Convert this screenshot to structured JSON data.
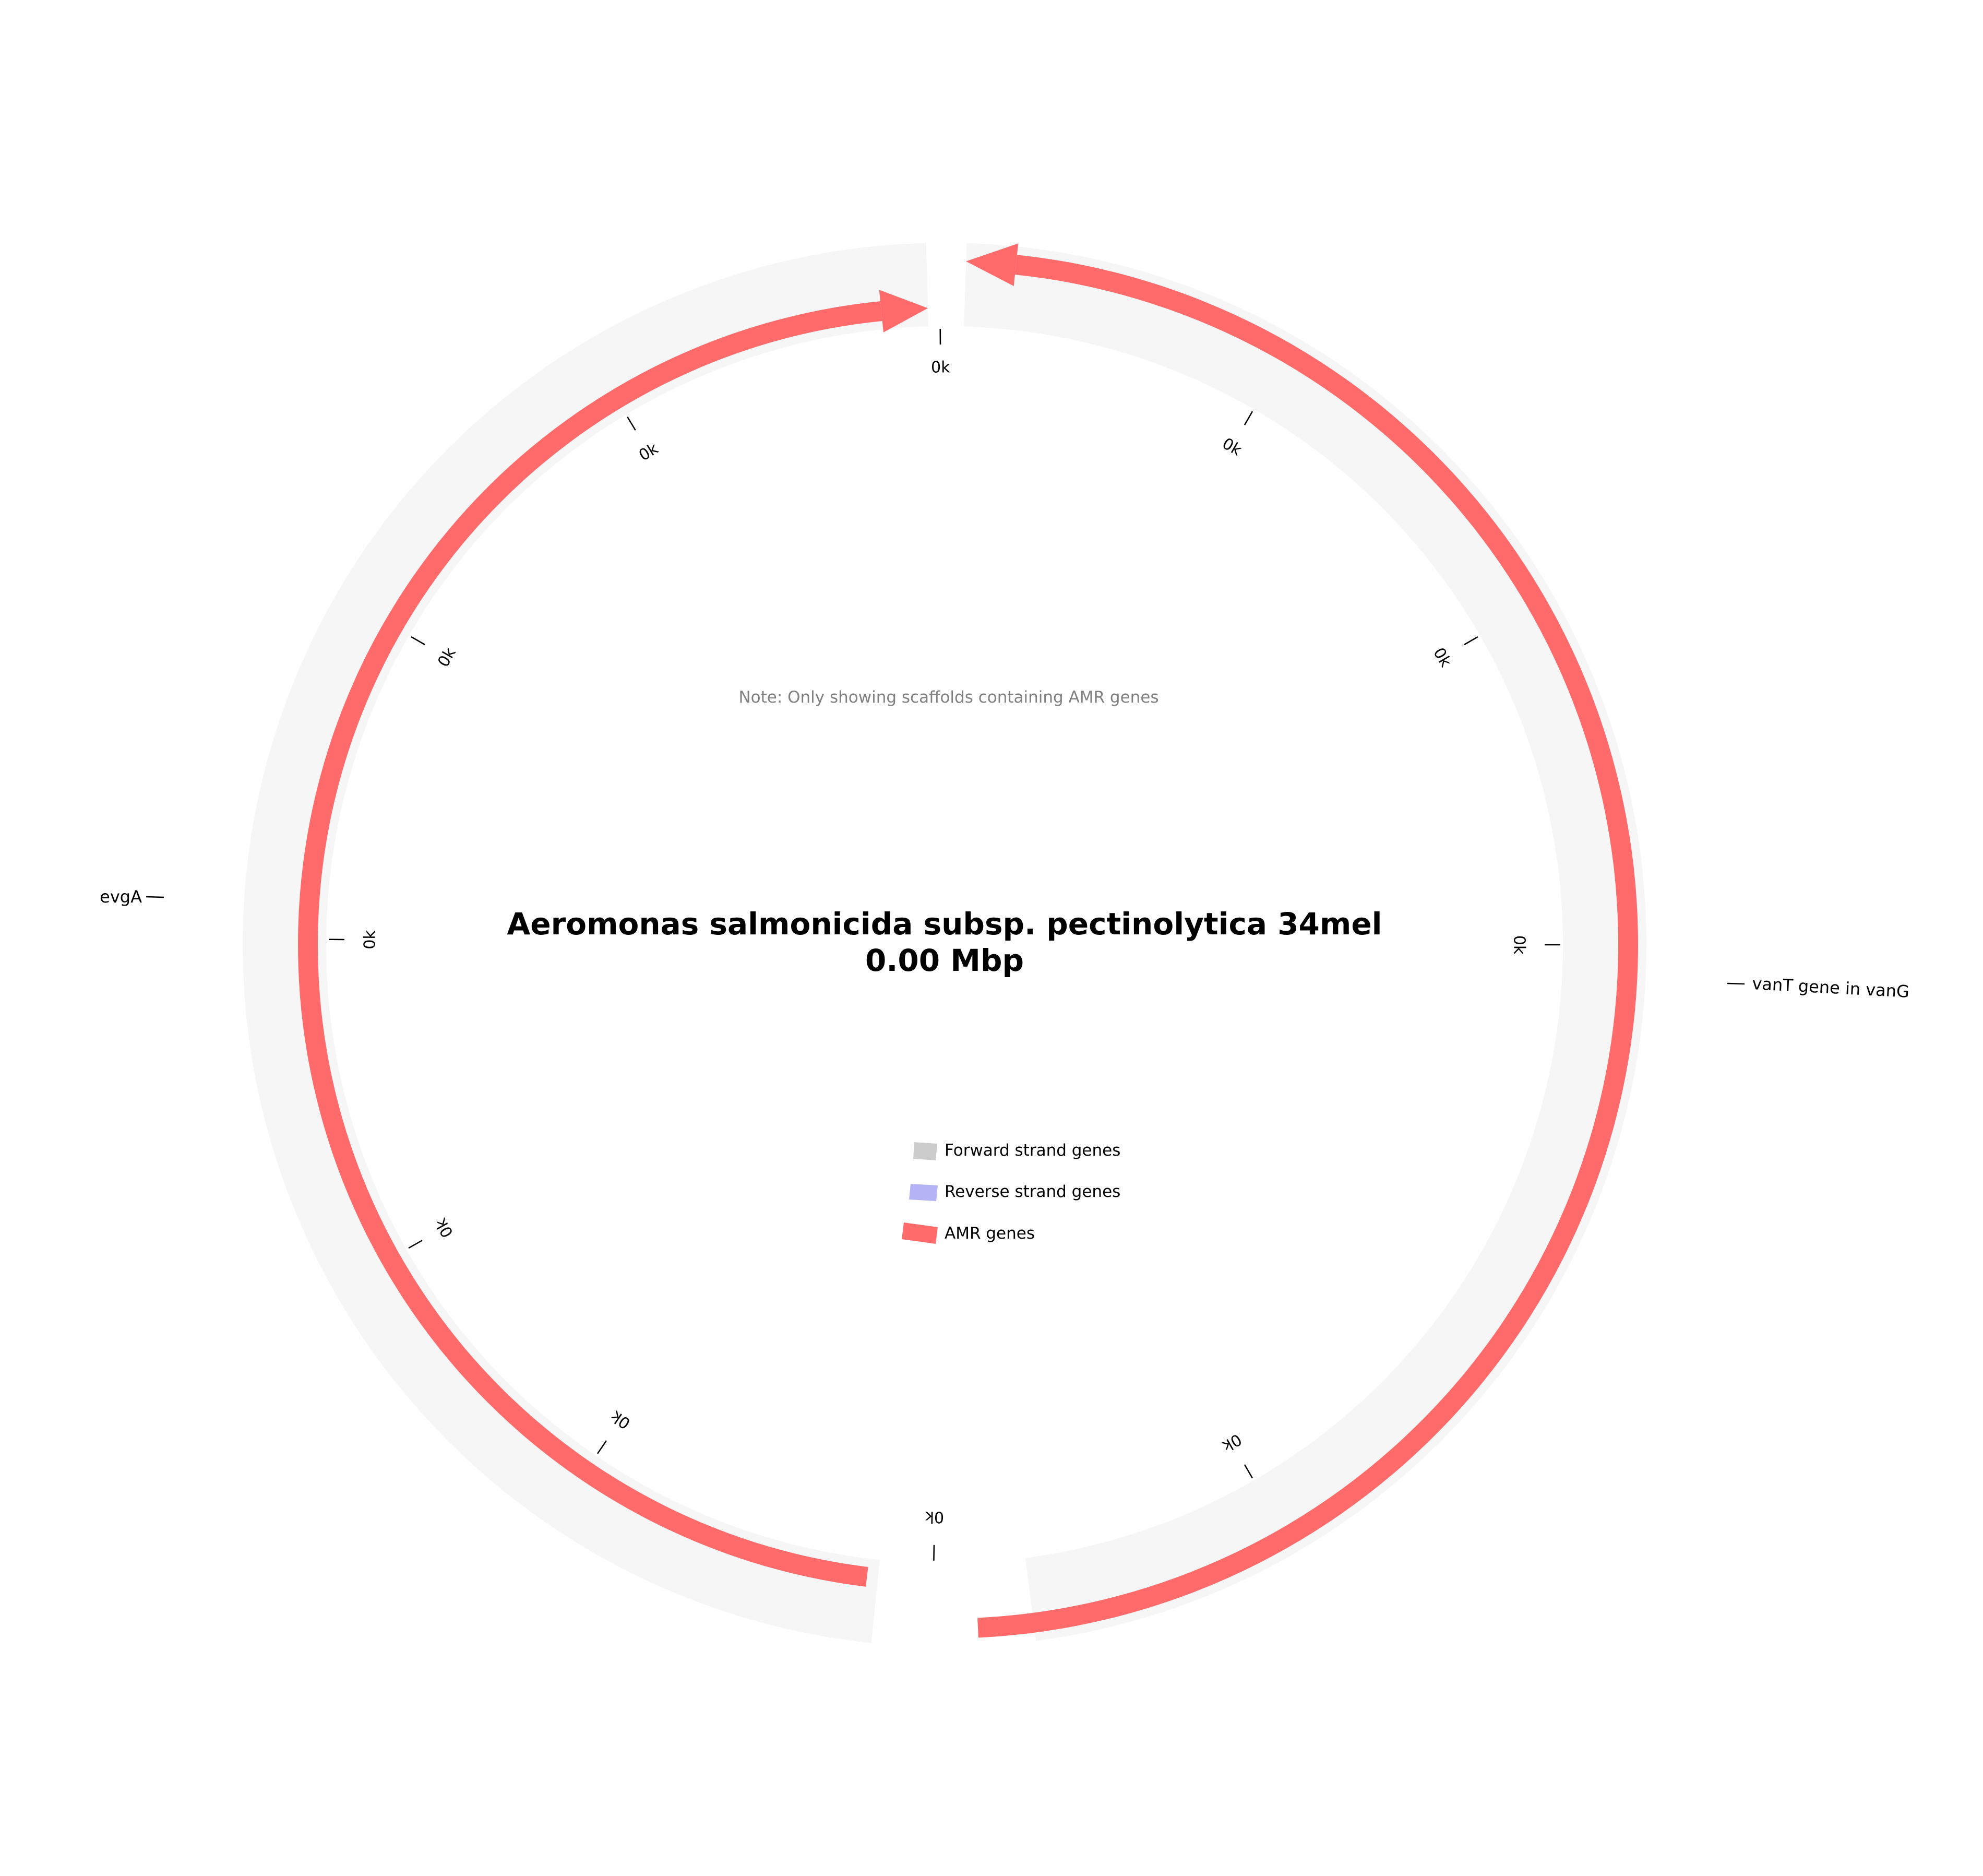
{
  "title": {
    "organism": "Aeromonas salmonicida subsp. pectinolytica 34mel",
    "size": "0.00 Mbp"
  },
  "note": "Note: Only showing scaffolds containing AMR genes",
  "ticks": [
    "0k",
    "0k",
    "0k",
    "0k",
    "0k",
    "0k",
    "0k",
    "0k",
    "0k",
    "0k",
    "0k",
    "0k"
  ],
  "genes": [
    {
      "label": "vanT gene in vanG",
      "strand": "reverse",
      "type": "AMR"
    },
    {
      "label": "evgA",
      "strand": "forward",
      "type": "AMR"
    }
  ],
  "legend": [
    {
      "label": "Forward strand genes",
      "color": "#cccccc"
    },
    {
      "label": "Reverse strand genes",
      "color": "#b3b3f5"
    },
    {
      "label": "AMR genes",
      "color": "#ff6b6b"
    }
  ],
  "colors": {
    "scaffold": "#f6f6f6",
    "amr": "#ff6b6b",
    "forward": "#cccccc",
    "reverse": "#b3b3f5",
    "tick": "#000000"
  }
}
